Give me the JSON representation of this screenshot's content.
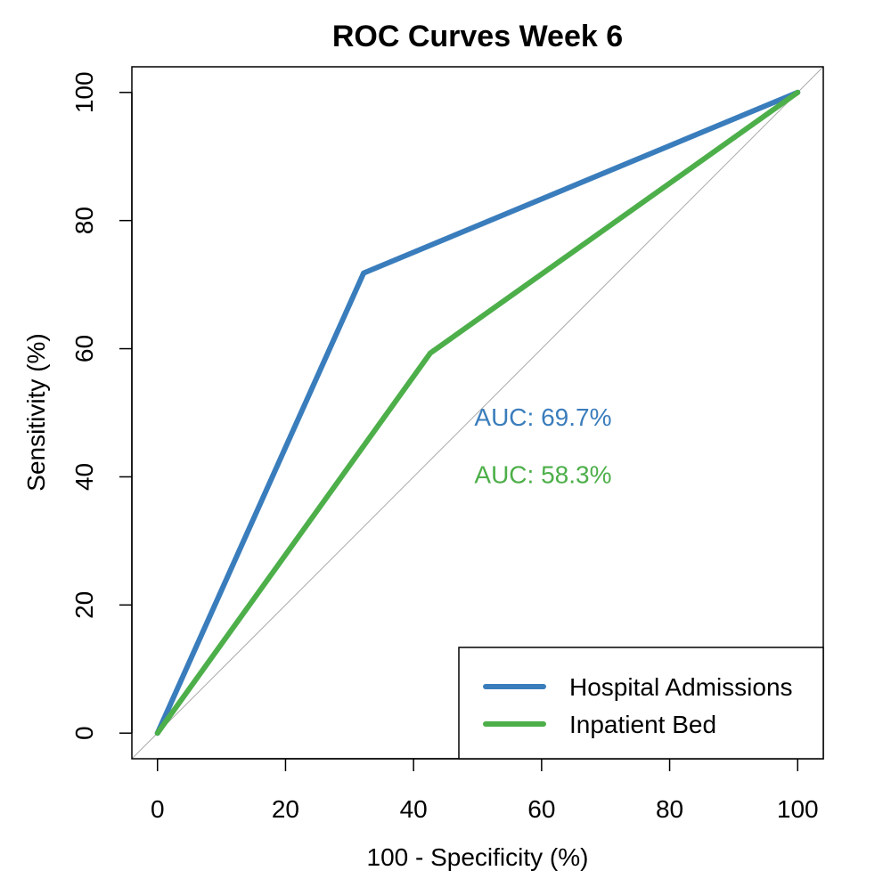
{
  "chart_data": {
    "type": "line",
    "title": "ROC Curves Week 6",
    "xlabel": "100 - Specificity (%)",
    "ylabel": "Sensitivity (%)",
    "xlim": [
      -4,
      104
    ],
    "ylim": [
      -4,
      104
    ],
    "x_ticks": [
      0,
      20,
      40,
      60,
      80,
      100
    ],
    "y_ticks": [
      0,
      20,
      40,
      60,
      80,
      100
    ],
    "x_tick_labels": [
      "0",
      "20",
      "40",
      "60",
      "80",
      "100"
    ],
    "y_tick_labels": [
      "0",
      "20",
      "40",
      "60",
      "80",
      "100"
    ],
    "grid": false,
    "reference_line": {
      "x": [
        -4,
        104
      ],
      "y": [
        -4,
        104
      ],
      "color": "#aaaaaa"
    },
    "series": [
      {
        "name": "Hospital Admissions",
        "color": "#3a7dbc",
        "x": [
          0,
          32.2,
          100
        ],
        "y": [
          0,
          71.8,
          100
        ]
      },
      {
        "name": "Inpatient Bed",
        "color": "#4daf4a",
        "x": [
          0,
          42.6,
          100
        ],
        "y": [
          0,
          59.3,
          100
        ]
      }
    ],
    "annotations": [
      {
        "text": "AUC: 69.7%",
        "x": 49.5,
        "y": 48,
        "color": "#3a7dbc"
      },
      {
        "text": "AUC: 58.3%",
        "x": 49.5,
        "y": 39,
        "color": "#4daf4a"
      }
    ],
    "legend": {
      "position": "bottom-right",
      "entries": [
        "Hospital Admissions",
        "Inpatient Bed"
      ]
    }
  }
}
